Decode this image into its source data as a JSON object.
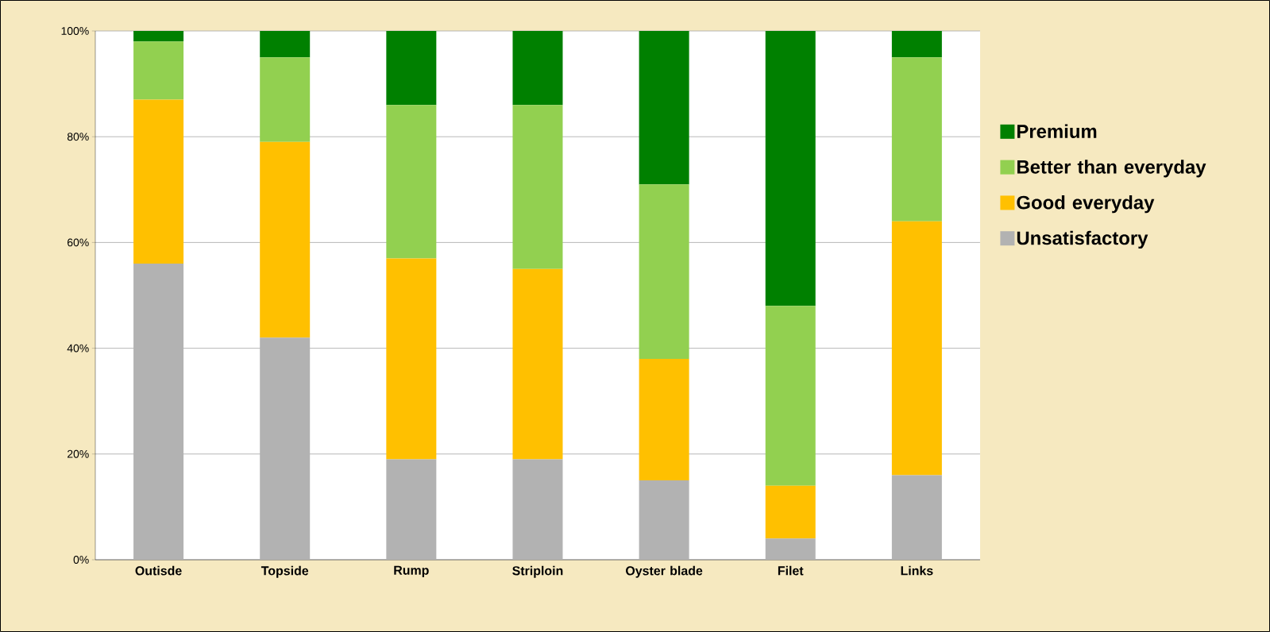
{
  "chart_data": {
    "type": "bar",
    "stacked": true,
    "categories": [
      "Outisde",
      "Topside",
      "Rump",
      "Striploin",
      "Oyster blade",
      "Filet",
      "Links"
    ],
    "series": [
      {
        "name": "Unsatisfactory",
        "color": "#b2b2b2",
        "values": [
          56,
          42,
          19,
          19,
          15,
          4,
          16
        ]
      },
      {
        "name": "Good everyday",
        "color": "#ffc000",
        "values": [
          31,
          37,
          38,
          36,
          23,
          10,
          48
        ]
      },
      {
        "name": "Better than everyday",
        "color": "#92d050",
        "values": [
          11,
          16,
          29,
          31,
          33,
          34,
          31
        ]
      },
      {
        "name": "Premium",
        "color": "#008000",
        "values": [
          2,
          5,
          14,
          14,
          29,
          52,
          5
        ]
      }
    ],
    "ylim": [
      0,
      100
    ],
    "yticks": [
      {
        "value": 0,
        "label": "0%"
      },
      {
        "value": 20,
        "label": "20%"
      },
      {
        "value": 40,
        "label": "40%"
      },
      {
        "value": 60,
        "label": "60%"
      },
      {
        "value": 80,
        "label": "80%"
      },
      {
        "value": 100,
        "label": "100%"
      }
    ],
    "grid": "y",
    "legend": "right"
  }
}
